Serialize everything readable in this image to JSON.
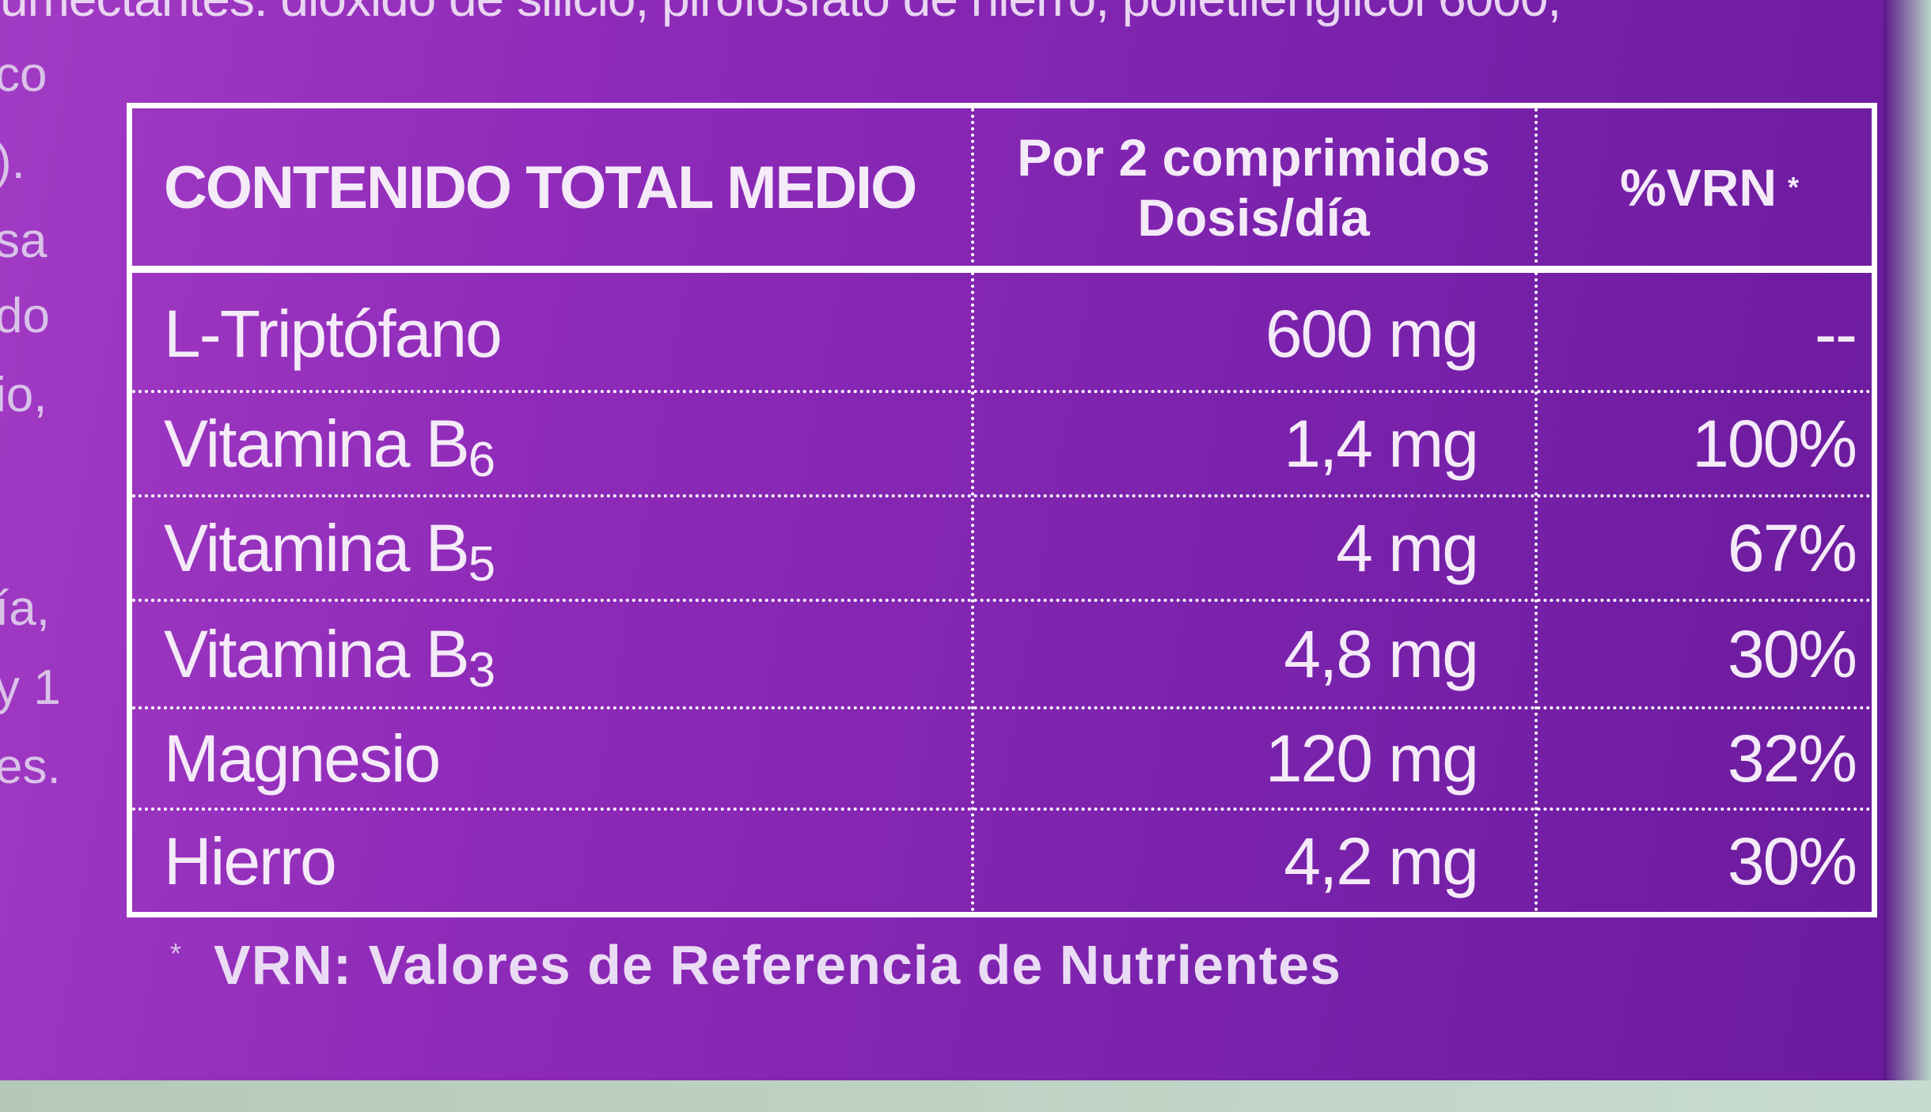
{
  "top_text": "umectantes: dióxido de silicio, pirofosfato de hierro, polietilenglicol 6000,",
  "left_fragments": [
    "co",
    ").",
    "sa",
    "do",
    "io,",
    "ía,",
    "y 1",
    "es."
  ],
  "table": {
    "headers": {
      "nutrient": "CONTENIDO TOTAL MEDIO",
      "amount_line1": "Por 2 comprimidos",
      "amount_line2": "Dosis/día",
      "vrn": "%VRN",
      "vrn_mark": "*"
    },
    "rows": [
      {
        "name": "L-Triptófano",
        "sub": "",
        "amount": "600 mg",
        "vrn": "--"
      },
      {
        "name": "Vitamina B",
        "sub": "6",
        "amount": "1,4 mg",
        "vrn": "100%"
      },
      {
        "name": "Vitamina B",
        "sub": "5",
        "amount": "4 mg",
        "vrn": "67%"
      },
      {
        "name": "Vitamina B",
        "sub": "3",
        "amount": "4,8 mg",
        "vrn": "30%"
      },
      {
        "name": "Magnesio",
        "sub": "",
        "amount": "120 mg",
        "vrn": "32%"
      },
      {
        "name": "Hierro",
        "sub": "",
        "amount": "4,2 mg",
        "vrn": "30%"
      }
    ]
  },
  "footnote": {
    "mark": "*",
    "text": "VRN: Valores de Referencia de Nutrientes"
  },
  "colors": {
    "background": "#8e2ab8",
    "text": "#ffffff"
  }
}
